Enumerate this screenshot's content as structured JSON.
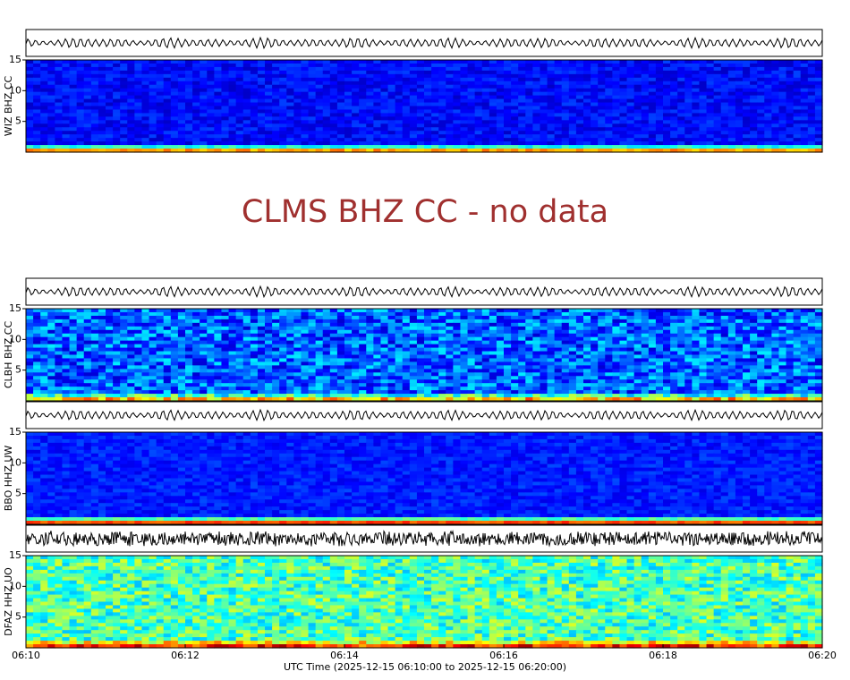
{
  "chart_data": [
    {
      "type": "spectrogram",
      "ylabel": "WIZ BHZ CC",
      "ylim": [
        0,
        15
      ],
      "yticks": [
        5,
        10,
        15
      ]
    },
    {
      "type": "no-data",
      "title": "CLMS BHZ CC - no data"
    },
    {
      "type": "spectrogram",
      "ylabel": "CLBH BHZ CC",
      "ylim": [
        0,
        15
      ],
      "yticks": [
        5,
        10,
        15
      ]
    },
    {
      "type": "spectrogram",
      "ylabel": "BBO HHZ UW",
      "ylim": [
        0,
        15
      ],
      "yticks": [
        5,
        10,
        15
      ]
    },
    {
      "type": "spectrogram",
      "ylabel": "DFAZ HHZ UO",
      "ylim": [
        0,
        15
      ],
      "yticks": [
        5,
        10,
        15
      ]
    }
  ],
  "x_axis": {
    "ticks": [
      "06:10",
      "06:12",
      "06:14",
      "06:16",
      "06:18",
      "06:20"
    ],
    "label": "UTC Time (2025-12-15 06:10:00 to 2025-12-15 06:20:00)"
  }
}
